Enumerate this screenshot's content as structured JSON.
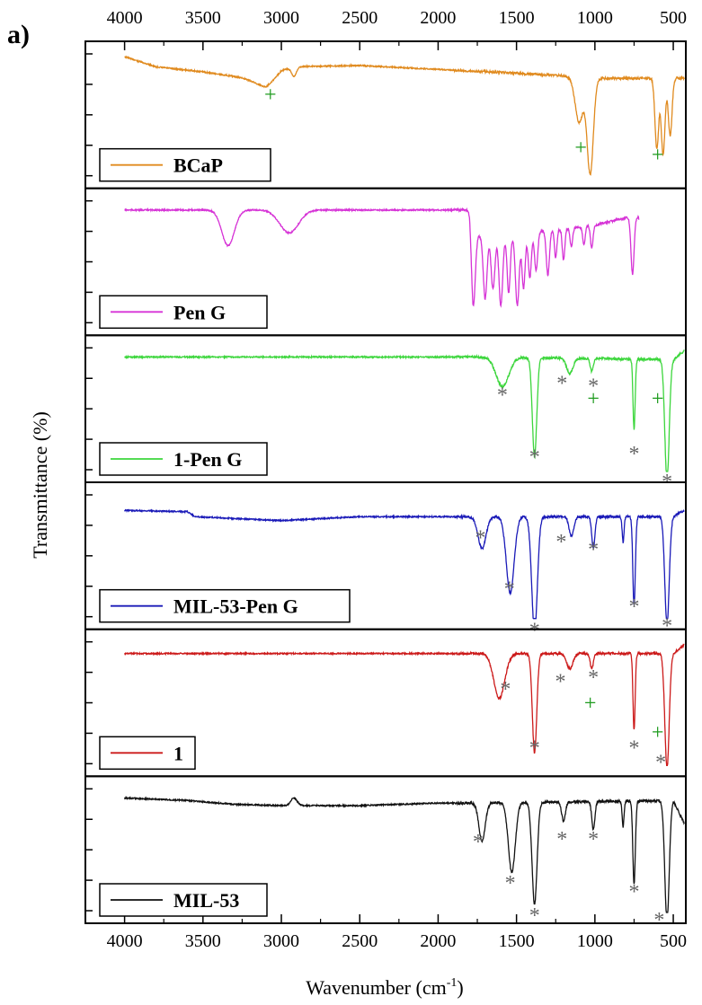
{
  "panel_label": "a)",
  "x_label_main": "Wavenumber (cm",
  "x_label_sup": "-1",
  "x_label_tail": ")",
  "y_label": "Transmittance (%)",
  "chart_data": {
    "type": "line",
    "title": "",
    "xlabel": "Wavenumber (cm-1)",
    "ylabel": "Transmittance (%)",
    "xlim": [
      4250,
      420
    ],
    "x_ticks": [
      4000,
      3500,
      3000,
      2500,
      2000,
      1500,
      1000,
      500
    ],
    "x_tick_labels": [
      "4000",
      "3500",
      "3000",
      "2500",
      "2000",
      "1500",
      "1000",
      "500"
    ],
    "legend_placement": "bottom-left of each panel",
    "stacked_panels": true,
    "series": [
      {
        "name": "BCaP",
        "color": "#e08a1e",
        "baseline_points": [
          [
            4000,
            0.05
          ],
          [
            3800,
            0.13
          ],
          [
            3500,
            0.17
          ],
          [
            3100,
            0.24
          ],
          [
            3000,
            0.13
          ],
          [
            2500,
            0.12
          ],
          [
            2000,
            0.15
          ],
          [
            1500,
            0.18
          ],
          [
            1200,
            0.2
          ],
          [
            1120,
            0.22
          ],
          [
            560,
            0.22
          ]
        ],
        "bands": [
          [
            3080,
            0.05,
            80
          ],
          [
            2920,
            0.07,
            15
          ],
          [
            1100,
            0.35,
            25
          ],
          [
            1030,
            0.75,
            20
          ],
          [
            605,
            0.55,
            12
          ],
          [
            565,
            0.6,
            12
          ],
          [
            520,
            0.45,
            12
          ]
        ],
        "markers": [
          {
            "symbol": "+",
            "x": 3070,
            "y": 0.36,
            "color": "#1f9b1f"
          },
          {
            "symbol": "+",
            "x": 1090,
            "y": 0.72,
            "color": "#1f9b1f"
          },
          {
            "symbol": "+",
            "x": 600,
            "y": 0.77,
            "color": "#1f9b1f"
          }
        ]
      },
      {
        "name": "Pen G",
        "color": "#d633d6",
        "x_range": [
          4000,
          720
        ],
        "baseline_points": [
          [
            4000,
            0.1
          ],
          [
            1800,
            0.1
          ],
          [
            1780,
            0.3
          ],
          [
            1500,
            0.3
          ],
          [
            1300,
            0.26
          ],
          [
            1000,
            0.22
          ],
          [
            800,
            0.16
          ],
          [
            720,
            0.15
          ]
        ],
        "bands": [
          [
            3340,
            0.28,
            40
          ],
          [
            2950,
            0.18,
            60
          ],
          [
            1775,
            0.55,
            12
          ],
          [
            1700,
            0.5,
            12
          ],
          [
            1650,
            0.42,
            12
          ],
          [
            1600,
            0.55,
            12
          ],
          [
            1550,
            0.45,
            10
          ],
          [
            1495,
            0.55,
            12
          ],
          [
            1455,
            0.42,
            10
          ],
          [
            1415,
            0.35,
            10
          ],
          [
            1375,
            0.3,
            10
          ],
          [
            1300,
            0.35,
            10
          ],
          [
            1250,
            0.22,
            8
          ],
          [
            1200,
            0.25,
            8
          ],
          [
            1150,
            0.15,
            8
          ],
          [
            1070,
            0.15,
            8
          ],
          [
            1020,
            0.18,
            8
          ],
          [
            760,
            0.45,
            10
          ],
          [
            700,
            0.42,
            8
          ]
        ],
        "markers": []
      },
      {
        "name": "1-Pen G",
        "color": "#3cd63c",
        "baseline_points": [
          [
            4000,
            0.1
          ],
          [
            1800,
            0.1
          ],
          [
            500,
            0.12
          ],
          [
            430,
            0.05
          ]
        ],
        "bands": [
          [
            1590,
            0.23,
            40
          ],
          [
            1385,
            0.78,
            14
          ],
          [
            1160,
            0.12,
            20
          ],
          [
            1020,
            0.1,
            10
          ],
          [
            750,
            0.55,
            7
          ],
          [
            540,
            0.95,
            14
          ]
        ],
        "markers": [
          {
            "symbol": "*",
            "x": 1590,
            "y": 0.38,
            "color": "#666666"
          },
          {
            "symbol": "*",
            "x": 1385,
            "y": 0.8,
            "color": "#666666"
          },
          {
            "symbol": "*",
            "x": 1210,
            "y": 0.3,
            "color": "#666666"
          },
          {
            "symbol": "*",
            "x": 1010,
            "y": 0.32,
            "color": "#666666"
          },
          {
            "symbol": "+",
            "x": 1010,
            "y": 0.43,
            "color": "#1f9b1f"
          },
          {
            "symbol": "+",
            "x": 600,
            "y": 0.43,
            "color": "#1f9b1f"
          },
          {
            "symbol": "*",
            "x": 750,
            "y": 0.78,
            "color": "#666666"
          },
          {
            "symbol": "*",
            "x": 540,
            "y": 0.97,
            "color": "#666666"
          }
        ]
      },
      {
        "name": "MIL-53-Pen G",
        "color": "#1a1ab8",
        "baseline_points": [
          [
            4000,
            0.15
          ],
          [
            3600,
            0.16
          ],
          [
            3550,
            0.2
          ],
          [
            3000,
            0.23
          ],
          [
            2500,
            0.2
          ],
          [
            2000,
            0.2
          ],
          [
            1800,
            0.2
          ],
          [
            500,
            0.2
          ],
          [
            430,
            0.15
          ]
        ],
        "bands": [
          [
            1720,
            0.25,
            25
          ],
          [
            1540,
            0.6,
            25
          ],
          [
            1385,
            0.9,
            18
          ],
          [
            1150,
            0.15,
            15
          ],
          [
            1010,
            0.25,
            10
          ],
          [
            820,
            0.2,
            6
          ],
          [
            750,
            0.7,
            8
          ],
          [
            540,
            0.85,
            14
          ]
        ],
        "markers": [
          {
            "symbol": "*",
            "x": 1730,
            "y": 0.35,
            "color": "#666666"
          },
          {
            "symbol": "*",
            "x": 1545,
            "y": 0.7,
            "color": "#666666"
          },
          {
            "symbol": "*",
            "x": 1385,
            "y": 0.98,
            "color": "#666666"
          },
          {
            "symbol": "*",
            "x": 1215,
            "y": 0.38,
            "color": "#666666"
          },
          {
            "symbol": "*",
            "x": 1010,
            "y": 0.43,
            "color": "#666666"
          },
          {
            "symbol": "*",
            "x": 750,
            "y": 0.82,
            "color": "#666666"
          },
          {
            "symbol": "*",
            "x": 540,
            "y": 0.95,
            "color": "#666666"
          }
        ]
      },
      {
        "name": "1",
        "color": "#cc1a1a",
        "baseline_points": [
          [
            4000,
            0.12
          ],
          [
            1800,
            0.12
          ],
          [
            500,
            0.12
          ],
          [
            430,
            0.05
          ]
        ],
        "bands": [
          [
            1610,
            0.35,
            35
          ],
          [
            1385,
            0.78,
            14
          ],
          [
            1160,
            0.12,
            20
          ],
          [
            1020,
            0.12,
            10
          ],
          [
            750,
            0.6,
            7
          ],
          [
            540,
            0.9,
            14
          ]
        ],
        "markers": [
          {
            "symbol": "*",
            "x": 1570,
            "y": 0.38,
            "color": "#666666"
          },
          {
            "symbol": "*",
            "x": 1385,
            "y": 0.78,
            "color": "#666666"
          },
          {
            "symbol": "*",
            "x": 1220,
            "y": 0.33,
            "color": "#666666"
          },
          {
            "symbol": "*",
            "x": 1010,
            "y": 0.3,
            "color": "#666666"
          },
          {
            "symbol": "+",
            "x": 1030,
            "y": 0.5,
            "color": "#1f9b1f"
          },
          {
            "symbol": "*",
            "x": 750,
            "y": 0.78,
            "color": "#666666"
          },
          {
            "symbol": "+",
            "x": 600,
            "y": 0.7,
            "color": "#1f9b1f"
          },
          {
            "symbol": "*",
            "x": 580,
            "y": 0.88,
            "color": "#666666"
          }
        ]
      },
      {
        "name": "MIL-53",
        "color": "#111111",
        "baseline_points": [
          [
            4000,
            0.1
          ],
          [
            3600,
            0.12
          ],
          [
            3300,
            0.15
          ],
          [
            3000,
            0.16
          ],
          [
            2500,
            0.16
          ],
          [
            2000,
            0.14
          ],
          [
            1800,
            0.14
          ],
          [
            500,
            0.12
          ],
          [
            430,
            0.3
          ]
        ],
        "bands": [
          [
            2920,
            -0.06,
            20
          ],
          [
            1720,
            0.3,
            20
          ],
          [
            1530,
            0.55,
            22
          ],
          [
            1385,
            0.8,
            16
          ],
          [
            1200,
            0.15,
            12
          ],
          [
            1010,
            0.22,
            10
          ],
          [
            820,
            0.2,
            6
          ],
          [
            750,
            0.65,
            8
          ],
          [
            540,
            0.95,
            14
          ]
        ],
        "markers": [
          {
            "symbol": "*",
            "x": 1745,
            "y": 0.42,
            "color": "#666666"
          },
          {
            "symbol": "*",
            "x": 1540,
            "y": 0.7,
            "color": "#666666"
          },
          {
            "symbol": "*",
            "x": 1385,
            "y": 0.92,
            "color": "#666666"
          },
          {
            "symbol": "*",
            "x": 1210,
            "y": 0.4,
            "color": "#666666"
          },
          {
            "symbol": "*",
            "x": 1010,
            "y": 0.4,
            "color": "#666666"
          },
          {
            "symbol": "*",
            "x": 750,
            "y": 0.76,
            "color": "#666666"
          },
          {
            "symbol": "*",
            "x": 590,
            "y": 0.95,
            "color": "#666666"
          }
        ]
      }
    ]
  }
}
